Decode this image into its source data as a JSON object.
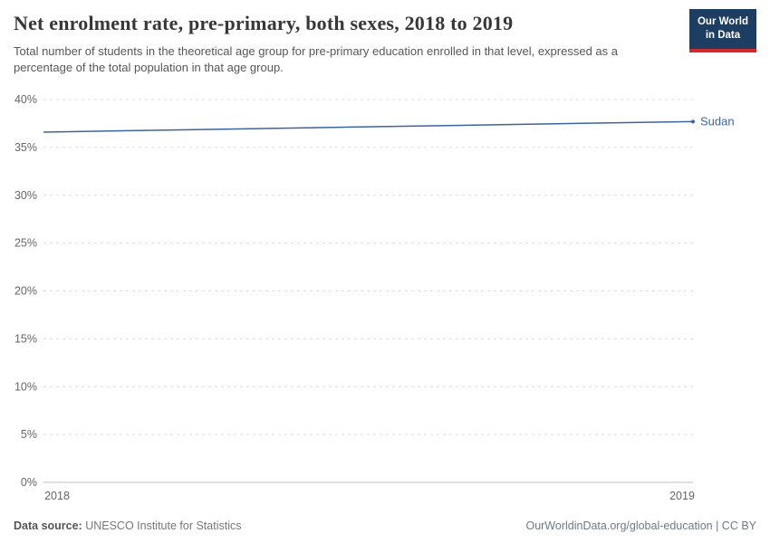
{
  "header": {
    "title": "Net enrolment rate, pre-primary, both sexes, 2018 to 2019",
    "subtitle": "Total number of students in the theoretical age group for pre-primary education enrolled in that level, expressed as a percentage of the total population in that age group.",
    "logo": {
      "line1": "Our World",
      "line2": "in Data"
    }
  },
  "chart_data": {
    "type": "line",
    "x": [
      2018,
      2019
    ],
    "xtick_labels": [
      "2018",
      "2019"
    ],
    "series": [
      {
        "name": "Sudan",
        "values": [
          36.6,
          37.7
        ],
        "color": "#3d649d"
      }
    ],
    "ylim": [
      0,
      40
    ],
    "ytick_step": 5,
    "ytick_suffix": "%",
    "grid": "dashed",
    "legend_position": "right-end-label"
  },
  "footer": {
    "source_label": "Data source:",
    "source_value": " UNESCO Institute for Statistics",
    "right_text": "OurWorldinData.org/global-education | CC BY"
  },
  "colors": {
    "logo_bg": "#1d3d63",
    "logo_accent": "#d22a2a",
    "line": "#3d649d",
    "grid": "#dcdcdc"
  }
}
